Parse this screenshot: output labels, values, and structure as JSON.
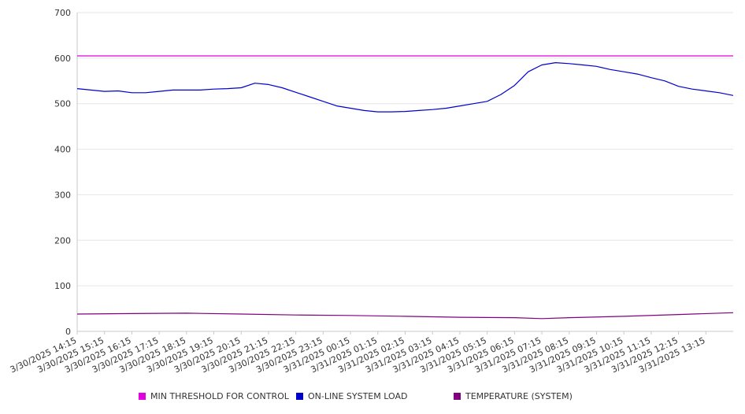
{
  "chart_data": {
    "type": "line",
    "title": "",
    "xlabel": "",
    "ylabel": "",
    "ylim": [
      0,
      700
    ],
    "yticks": [
      0,
      100,
      200,
      300,
      400,
      500,
      600,
      700
    ],
    "grid": true,
    "legend_position": "bottom",
    "x_tick_labels": [
      "3/30/2025 14:15",
      "3/30/2025 15:15",
      "3/30/2025 16:15",
      "3/30/2025 17:15",
      "3/30/2025 18:15",
      "3/30/2025 19:15",
      "3/30/2025 20:15",
      "3/30/2025 21:15",
      "3/30/2025 22:15",
      "3/30/2025 23:15",
      "3/31/2025 00:15",
      "3/31/2025 01:15",
      "3/31/2025 02:15",
      "3/31/2025 03:15",
      "3/31/2025 04:15",
      "3/31/2025 05:15",
      "3/31/2025 06:15",
      "3/31/2025 07:15",
      "3/31/2025 08:15",
      "3/31/2025 09:15",
      "3/31/2025 10:15",
      "3/31/2025 11:15",
      "3/31/2025 12:15",
      "3/31/2025 13:15"
    ],
    "series": [
      {
        "name": "MIN THRESHOLD FOR CONTROL",
        "color": "#e000e0",
        "x": [
          "3/30/2025 14:15",
          "3/31/2025 14:15"
        ],
        "values": [
          605,
          605
        ]
      },
      {
        "name": "ON-LINE SYSTEM LOAD",
        "color": "#0000cc",
        "x": [
          "3/30/2025 14:15",
          "3/30/2025 14:45",
          "3/30/2025 15:15",
          "3/30/2025 15:45",
          "3/30/2025 16:15",
          "3/30/2025 16:45",
          "3/30/2025 17:15",
          "3/30/2025 17:45",
          "3/30/2025 18:15",
          "3/30/2025 18:45",
          "3/30/2025 19:15",
          "3/30/2025 19:45",
          "3/30/2025 20:15",
          "3/30/2025 20:45",
          "3/30/2025 21:15",
          "3/30/2025 21:45",
          "3/30/2025 22:15",
          "3/30/2025 22:45",
          "3/30/2025 23:15",
          "3/30/2025 23:45",
          "3/31/2025 00:15",
          "3/31/2025 00:45",
          "3/31/2025 01:15",
          "3/31/2025 01:45",
          "3/31/2025 02:15",
          "3/31/2025 02:45",
          "3/31/2025 03:15",
          "3/31/2025 03:45",
          "3/31/2025 04:15",
          "3/31/2025 04:45",
          "3/31/2025 05:15",
          "3/31/2025 05:45",
          "3/31/2025 06:15",
          "3/31/2025 06:45",
          "3/31/2025 07:15",
          "3/31/2025 07:45",
          "3/31/2025 08:15",
          "3/31/2025 08:45",
          "3/31/2025 09:15",
          "3/31/2025 09:45",
          "3/31/2025 10:15",
          "3/31/2025 10:45",
          "3/31/2025 11:15",
          "3/31/2025 11:45",
          "3/31/2025 12:15",
          "3/31/2025 12:45",
          "3/31/2025 13:15",
          "3/31/2025 13:45",
          "3/31/2025 14:15"
        ],
        "values": [
          533,
          530,
          527,
          528,
          524,
          524,
          527,
          530,
          530,
          530,
          532,
          533,
          535,
          545,
          542,
          535,
          525,
          515,
          505,
          495,
          490,
          485,
          482,
          482,
          483,
          485,
          487,
          490,
          495,
          500,
          505,
          520,
          540,
          570,
          585,
          590,
          588,
          585,
          582,
          575,
          570,
          565,
          557,
          550,
          538,
          532,
          528,
          524,
          518
        ]
      },
      {
        "name": "TEMPERATURE (SYSTEM)",
        "color": "#800080",
        "x": [
          "3/30/2025 14:15",
          "3/30/2025 16:15",
          "3/30/2025 18:15",
          "3/30/2025 20:15",
          "3/30/2025 22:15",
          "3/31/2025 00:15",
          "3/31/2025 02:15",
          "3/31/2025 04:15",
          "3/31/2025 06:15",
          "3/31/2025 07:15",
          "3/31/2025 08:15",
          "3/31/2025 10:15",
          "3/31/2025 12:15",
          "3/31/2025 14:15"
        ],
        "values": [
          38,
          39,
          40,
          38,
          36,
          35,
          33,
          31,
          30,
          28,
          30,
          33,
          37,
          41
        ]
      }
    ]
  }
}
